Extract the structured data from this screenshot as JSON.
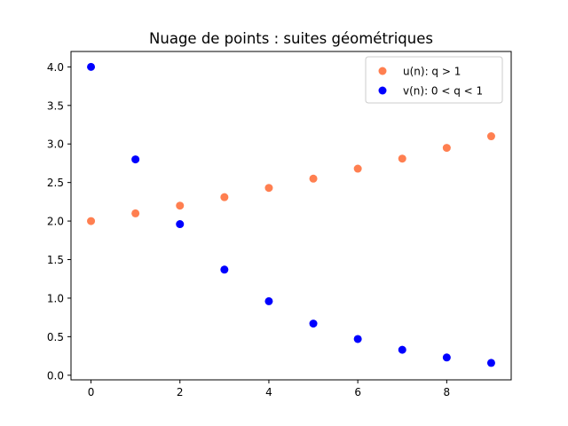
{
  "chart_data": {
    "type": "scatter",
    "title": "Nuage de points : suites géométriques",
    "xlabel": "",
    "ylabel": "",
    "xlim": [
      -0.45,
      9.45
    ],
    "ylim": [
      -0.06,
      4.2
    ],
    "xticks": [
      0,
      2,
      4,
      6,
      8
    ],
    "yticks": [
      0.0,
      0.5,
      1.0,
      1.5,
      2.0,
      2.5,
      3.0,
      3.5,
      4.0
    ],
    "grid": false,
    "legend_position": "top-right",
    "series": [
      {
        "name": "u(n): q > 1",
        "color": "#FF7F50",
        "x": [
          0,
          1,
          2,
          3,
          4,
          5,
          6,
          7,
          8,
          9
        ],
        "y": [
          2.0,
          2.1,
          2.2,
          2.31,
          2.43,
          2.55,
          2.68,
          2.81,
          2.95,
          3.1
        ]
      },
      {
        "name": "v(n): 0 < q < 1",
        "color": "#0000FF",
        "x": [
          0,
          1,
          2,
          3,
          4,
          5,
          6,
          7,
          8,
          9
        ],
        "y": [
          4.0,
          2.8,
          1.96,
          1.37,
          0.96,
          0.67,
          0.47,
          0.33,
          0.23,
          0.16
        ]
      }
    ]
  }
}
